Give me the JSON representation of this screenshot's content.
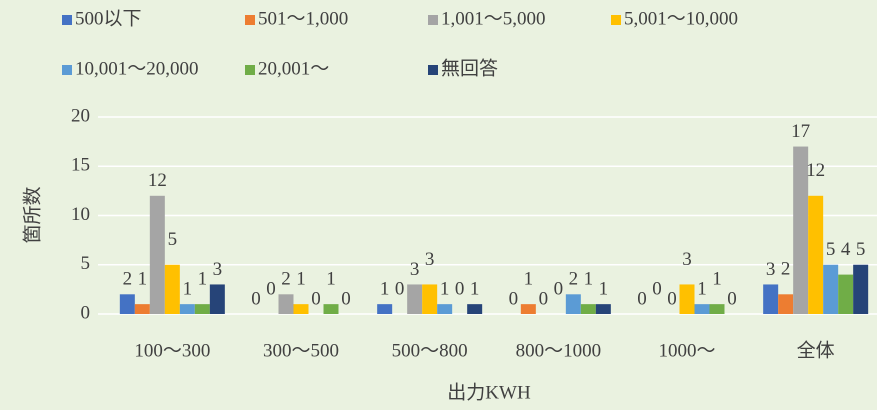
{
  "chart_data": {
    "type": "bar",
    "x_label": "出力KWH",
    "y_label": "箇所数",
    "categories": [
      "100～300",
      "300～500",
      "500～800",
      "800～1000",
      "1000～",
      "全体"
    ],
    "series": [
      {
        "name": "500以下",
        "color": "#4472c4",
        "values": [
          2,
          0,
          1,
          0,
          0,
          3
        ]
      },
      {
        "name": "501～1,000",
        "color": "#ed7d31",
        "values": [
          1,
          0,
          0,
          1,
          0,
          2
        ]
      },
      {
        "name": "1,001～5,000",
        "color": "#a5a5a5",
        "values": [
          12,
          2,
          3,
          0,
          0,
          17
        ]
      },
      {
        "name": "5,001～10,000",
        "color": "#ffc000",
        "values": [
          5,
          1,
          3,
          0,
          3,
          12
        ]
      },
      {
        "name": "10,001～20,000",
        "color": "#5b9bd5",
        "values": [
          1,
          0,
          1,
          2,
          1,
          5
        ]
      },
      {
        "name": "20,001～",
        "color": "#70ad47",
        "values": [
          1,
          1,
          0,
          1,
          1,
          4
        ]
      },
      {
        "name": "無回答",
        "color": "#264478",
        "values": [
          3,
          0,
          1,
          1,
          0,
          5
        ]
      }
    ],
    "ylim": [
      0,
      20
    ],
    "yticks": [
      0,
      5,
      10,
      15,
      20
    ],
    "grid": true,
    "legend": "top"
  }
}
